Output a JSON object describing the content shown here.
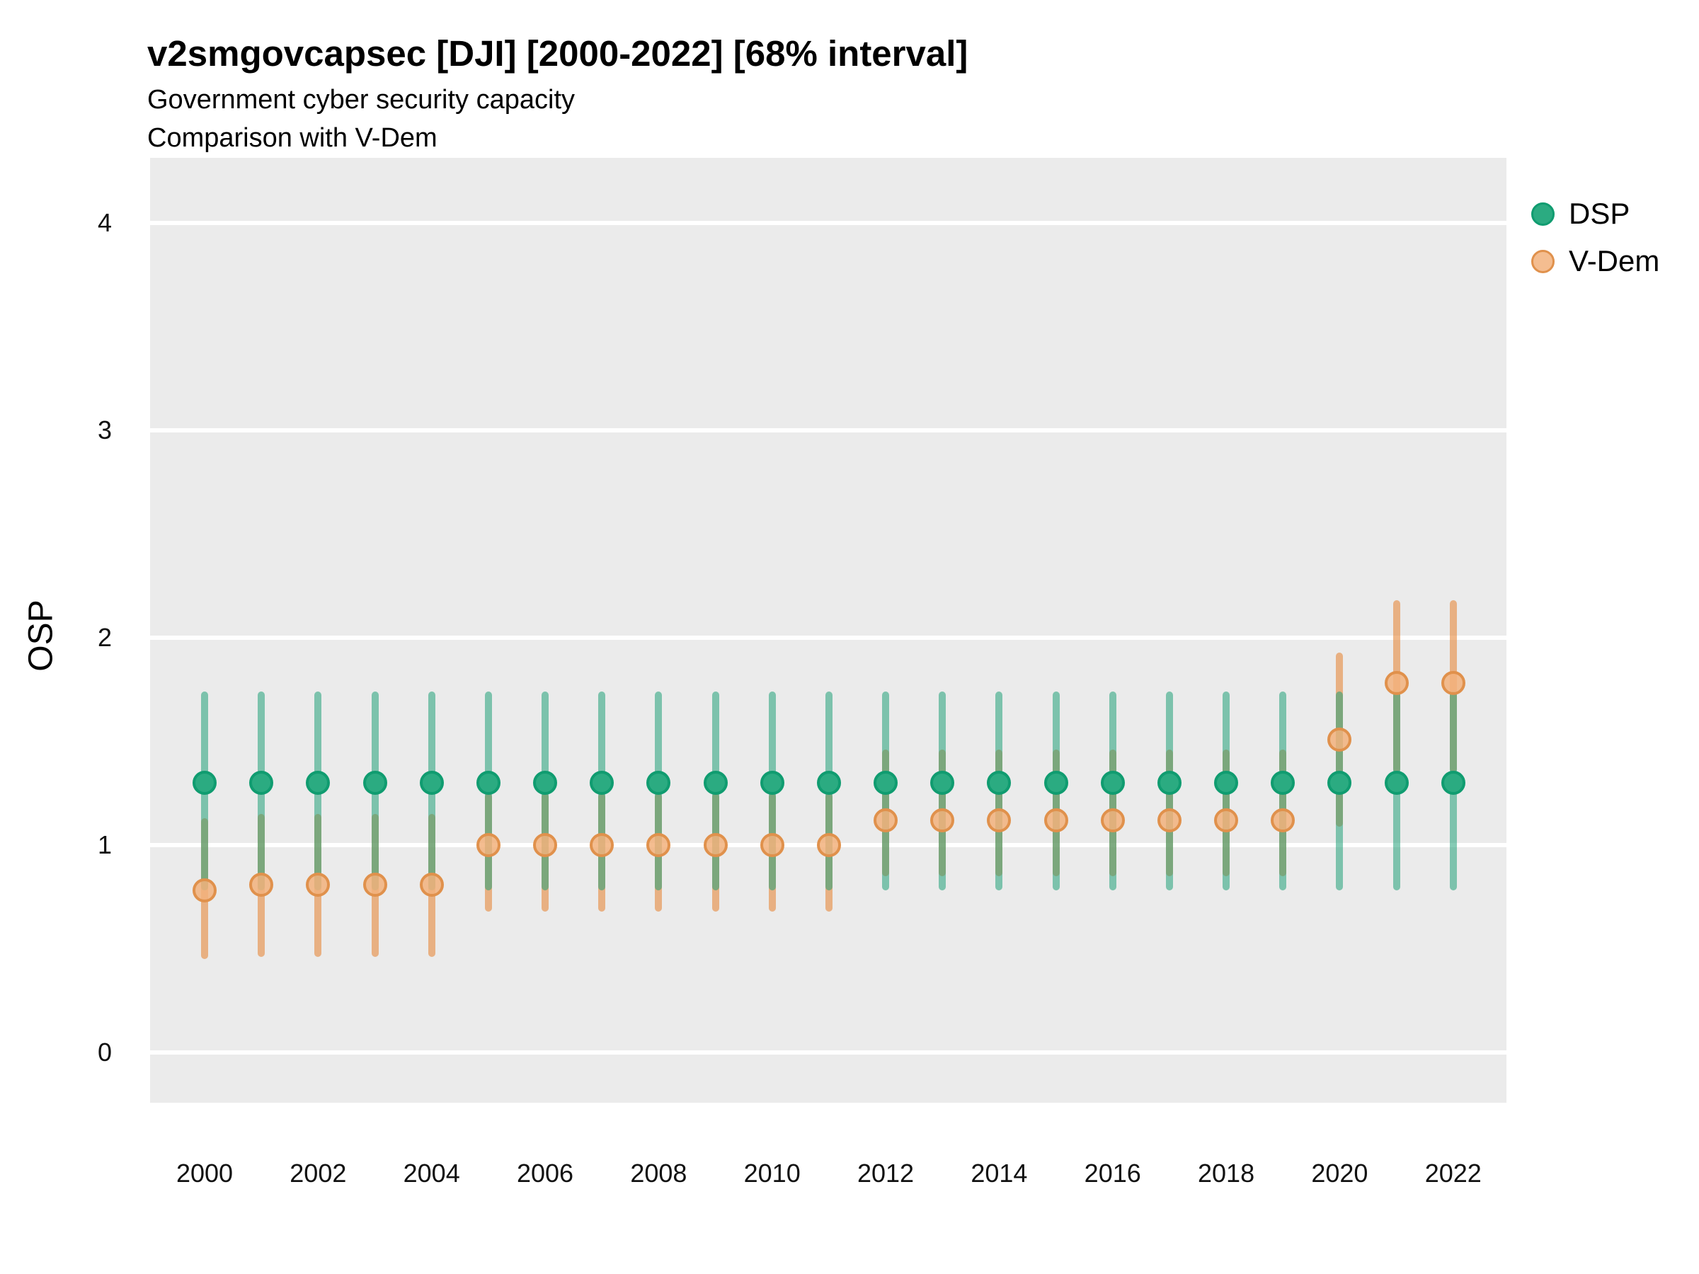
{
  "header": {
    "title": "v2smgovcapsec [DJI] [2000-2022] [68% interval]",
    "subtitle_line1": "Government cyber security capacity",
    "subtitle_line2": "Comparison with V-Dem"
  },
  "axes": {
    "y": {
      "title": "OSP",
      "tick_labels": [
        "0",
        "1",
        "2",
        "3",
        "4"
      ]
    },
    "x": {
      "title": "",
      "tick_labels": [
        "2000",
        "2002",
        "2004",
        "2006",
        "2008",
        "2010",
        "2012",
        "2014",
        "2016",
        "2018",
        "2020",
        "2022"
      ]
    }
  },
  "legend": {
    "position": "right",
    "items": [
      {
        "label": "DSP",
        "dot_fill": "#2BAB81",
        "dot_stroke": "#109C70"
      },
      {
        "label": "V-Dem",
        "dot_fill": "rgba(242,178,125,0.85)",
        "dot_stroke": "#E0914C"
      }
    ]
  },
  "colors": {
    "panel_bg": "#EBEBEB",
    "grid": "#FFFFFF",
    "text": "#000000",
    "dsp_dot_fill": "#2BAB81",
    "dsp_dot_stroke": "#109C70",
    "dsp_interval_line": "rgba(33,161,121,0.55)",
    "vdem_dot_fill": "rgba(242,178,125,0.85)",
    "vdem_dot_stroke": "#E0914C",
    "vdem_interval_line": "rgba(230,133,53,0.58)"
  },
  "chart_data": {
    "type": "pointrange",
    "title": "v2smgovcapsec [DJI] [2000-2022] [68% interval]",
    "subtitle": [
      "Government cyber security capacity",
      "Comparison with V-Dem"
    ],
    "interval": "68%",
    "xlabel": "",
    "ylabel": "OSP",
    "ylim": [
      -0.24,
      4.31
    ],
    "y_ticks": [
      0,
      1,
      2,
      3,
      4
    ],
    "x_labeled_years": [
      2000,
      2002,
      2004,
      2006,
      2008,
      2010,
      2012,
      2014,
      2016,
      2018,
      2020,
      2022
    ],
    "grid": "horizontal-major-only",
    "legend_position": "right",
    "years": [
      2000,
      2001,
      2002,
      2003,
      2004,
      2005,
      2006,
      2007,
      2008,
      2009,
      2010,
      2011,
      2012,
      2013,
      2014,
      2015,
      2016,
      2017,
      2018,
      2019,
      2020,
      2021,
      2022
    ],
    "series": [
      {
        "name": "DSP",
        "point": [
          1.3,
          1.3,
          1.3,
          1.3,
          1.3,
          1.3,
          1.3,
          1.3,
          1.3,
          1.3,
          1.3,
          1.3,
          1.3,
          1.3,
          1.3,
          1.3,
          1.3,
          1.3,
          1.3,
          1.3,
          1.3,
          1.3,
          1.3
        ],
        "lower": [
          0.78,
          0.78,
          0.78,
          0.78,
          0.78,
          0.78,
          0.78,
          0.78,
          0.78,
          0.78,
          0.78,
          0.78,
          0.78,
          0.78,
          0.78,
          0.78,
          0.78,
          0.78,
          0.78,
          0.78,
          0.78,
          0.78,
          0.78
        ],
        "upper": [
          1.74,
          1.74,
          1.74,
          1.74,
          1.74,
          1.74,
          1.74,
          1.74,
          1.74,
          1.74,
          1.74,
          1.74,
          1.74,
          1.74,
          1.74,
          1.74,
          1.74,
          1.74,
          1.74,
          1.74,
          1.74,
          1.74,
          1.74
        ]
      },
      {
        "name": "V-Dem",
        "point": [
          0.78,
          0.81,
          0.81,
          0.81,
          0.81,
          1.0,
          1.0,
          1.0,
          1.0,
          1.0,
          1.0,
          1.0,
          1.12,
          1.12,
          1.12,
          1.12,
          1.12,
          1.12,
          1.12,
          1.12,
          1.51,
          1.78,
          1.78
        ],
        "lower": [
          0.45,
          0.46,
          0.46,
          0.46,
          0.46,
          0.68,
          0.68,
          0.68,
          0.68,
          0.68,
          0.68,
          0.68,
          0.85,
          0.85,
          0.85,
          0.85,
          0.85,
          0.85,
          0.85,
          0.85,
          1.09,
          1.35,
          1.35
        ],
        "upper": [
          1.13,
          1.15,
          1.15,
          1.15,
          1.15,
          1.25,
          1.25,
          1.25,
          1.25,
          1.25,
          1.25,
          1.25,
          1.46,
          1.46,
          1.46,
          1.46,
          1.46,
          1.46,
          1.46,
          1.46,
          1.93,
          2.18,
          2.18
        ]
      }
    ]
  }
}
